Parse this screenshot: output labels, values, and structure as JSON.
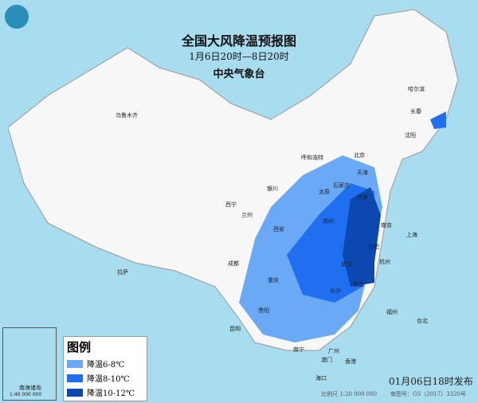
{
  "title": "全国大风降温预报图",
  "period": "1月6日20时—8日20时",
  "issuer": "中央气象台",
  "legend": {
    "heading": "图例",
    "items": [
      {
        "label": "降温6-8℃",
        "color": "#6aa9f5"
      },
      {
        "label": "降温8-10℃",
        "color": "#1f6ff0"
      },
      {
        "label": "降温10-12℃",
        "color": "#0b48b0"
      }
    ]
  },
  "publish_time": "01月06日18时发布",
  "scale": "比例尺 1:20 000 000",
  "map_number": "审图号：GS（2017）3320号",
  "inset": {
    "label": "南海诸岛",
    "scale": "1:40 000 000"
  },
  "colors": {
    "sea": "#a8dcef",
    "land": "#f7f7f7",
    "wind_barb": "#d0343a"
  },
  "cities": [
    "乌鲁木齐",
    "哈尔滨",
    "长春",
    "沈阳",
    "北京",
    "天津",
    "呼和浩特",
    "石家庄",
    "太原",
    "济南",
    "银川",
    "西宁",
    "兰州",
    "郑州",
    "西安",
    "合肥",
    "南京",
    "上海",
    "杭州",
    "武汉",
    "成都",
    "重庆",
    "长沙",
    "南昌",
    "福州",
    "台北",
    "拉萨",
    "贵阳",
    "昆明",
    "南宁",
    "广州",
    "香港",
    "澳门",
    "海口"
  ]
}
